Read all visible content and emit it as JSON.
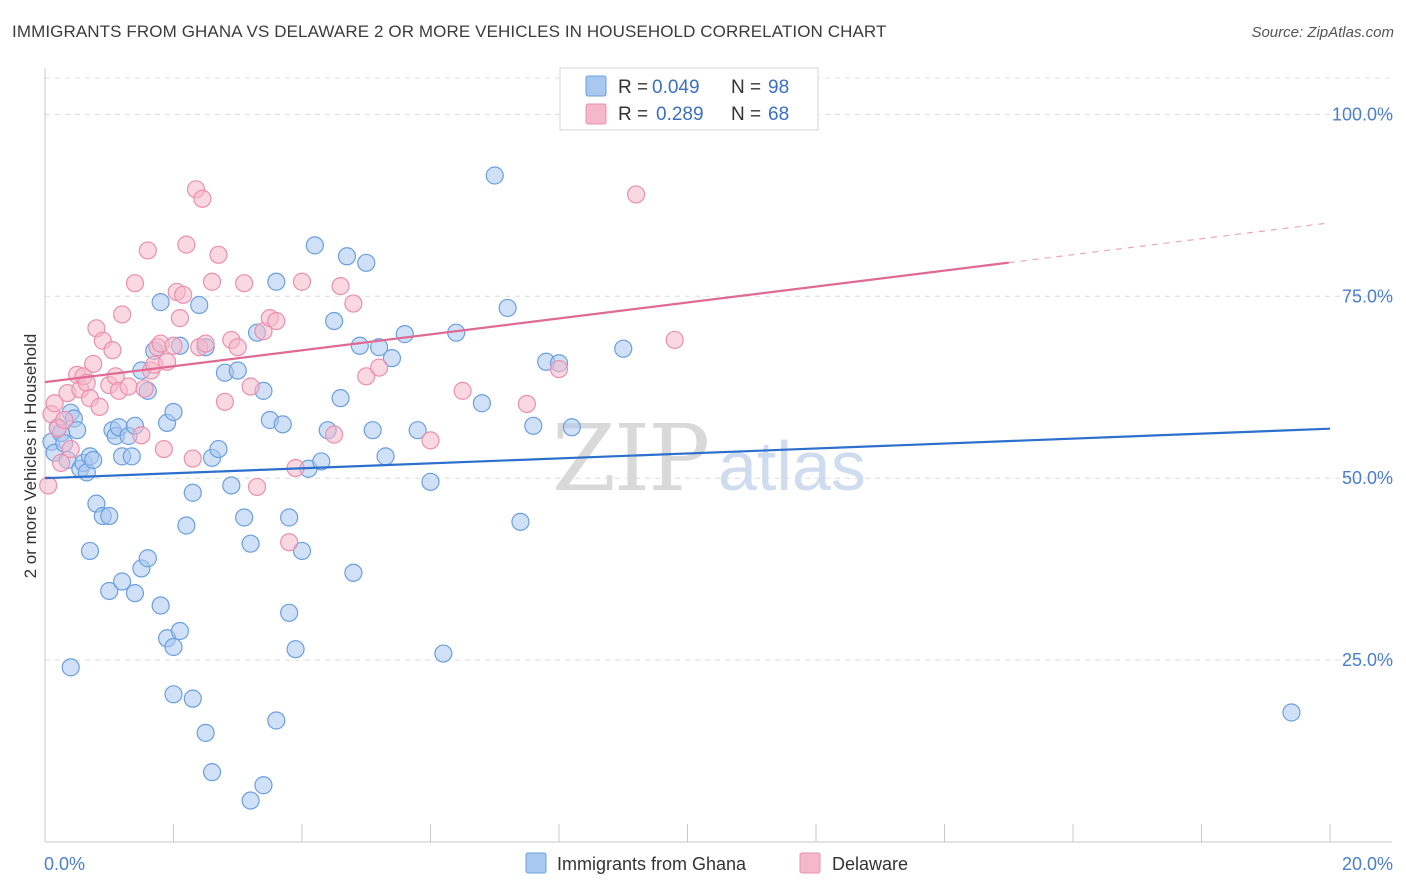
{
  "title": "IMMIGRANTS FROM GHANA VS DELAWARE 2 OR MORE VEHICLES IN HOUSEHOLD CORRELATION CHART",
  "source": "Source: ZipAtlas.com",
  "watermark": {
    "zip": "ZIP",
    "atlas": "atlas"
  },
  "colors": {
    "blue_fill": "#a9c8f0",
    "blue_stroke": "#6b9fe0",
    "blue_line": "#2d6fcc",
    "pink_fill": "#f5b8cb",
    "pink_stroke": "#ec8fae",
    "pink_line": "#e06a94",
    "grid": "#dcdcdc",
    "tick_label": "#4a7ecf"
  },
  "chart_data": {
    "type": "scatter",
    "title": "IMMIGRANTS FROM GHANA VS DELAWARE 2 OR MORE VEHICLES IN HOUSEHOLD CORRELATION CHART",
    "xlabel": "",
    "ylabel": "2 or more Vehicles in Household",
    "xlim": [
      0,
      20
    ],
    "ylim": [
      0,
      105
    ],
    "x_tick_labels": [
      {
        "value": 0,
        "label": "0.0%"
      },
      {
        "value": 20,
        "label": "20.0%"
      }
    ],
    "y_tick_labels": [
      {
        "value": 25,
        "label": "25.0%"
      },
      {
        "value": 50,
        "label": "50.0%"
      },
      {
        "value": 75,
        "label": "75.0%"
      },
      {
        "value": 100,
        "label": "100.0%"
      }
    ],
    "legend": {
      "position": "top-center",
      "entries": [
        {
          "r_label": "R =",
          "r_value": "0.049",
          "n_label": "N =",
          "n_value": "98"
        },
        {
          "r_label": "R =",
          "r_value": "0.289",
          "n_label": "N =",
          "n_value": "68"
        }
      ]
    },
    "series": [
      {
        "name": "Immigrants from Ghana",
        "color": "#a9c8f0",
        "trend": {
          "x0": 0,
          "y0": 50.0,
          "x1": 20,
          "y1": 56.8,
          "dashed_from": null
        },
        "points": [
          [
            0.1,
            55.0
          ],
          [
            0.15,
            53.5
          ],
          [
            0.2,
            57.0
          ],
          [
            0.25,
            56.2
          ],
          [
            0.3,
            54.8
          ],
          [
            0.35,
            52.5
          ],
          [
            0.4,
            59.0
          ],
          [
            0.45,
            58.2
          ],
          [
            0.5,
            56.6
          ],
          [
            0.55,
            51.3
          ],
          [
            0.6,
            52.1
          ],
          [
            0.65,
            50.8
          ],
          [
            0.7,
            53.0
          ],
          [
            0.75,
            52.5
          ],
          [
            0.8,
            46.5
          ],
          [
            0.9,
            44.8
          ],
          [
            1.0,
            44.8
          ],
          [
            1.05,
            56.6
          ],
          [
            1.1,
            55.8
          ],
          [
            1.15,
            57.0
          ],
          [
            1.2,
            53.0
          ],
          [
            1.3,
            55.8
          ],
          [
            1.35,
            53.0
          ],
          [
            1.4,
            57.2
          ],
          [
            1.5,
            64.8
          ],
          [
            1.6,
            62.0
          ],
          [
            1.7,
            67.5
          ],
          [
            1.8,
            74.2
          ],
          [
            1.9,
            57.6
          ],
          [
            2.0,
            59.1
          ],
          [
            2.1,
            68.2
          ],
          [
            2.2,
            43.5
          ],
          [
            2.3,
            48.0
          ],
          [
            2.4,
            73.8
          ],
          [
            2.5,
            68.0
          ],
          [
            2.6,
            52.8
          ],
          [
            2.7,
            54.0
          ],
          [
            2.8,
            64.5
          ],
          [
            2.9,
            49.0
          ],
          [
            3.0,
            64.8
          ],
          [
            3.1,
            44.6
          ],
          [
            3.2,
            41.0
          ],
          [
            3.3,
            70.0
          ],
          [
            3.4,
            62.0
          ],
          [
            3.5,
            58.0
          ],
          [
            3.6,
            77.0
          ],
          [
            3.7,
            57.4
          ],
          [
            3.8,
            44.6
          ],
          [
            3.9,
            26.5
          ],
          [
            4.0,
            40.0
          ],
          [
            4.1,
            51.3
          ],
          [
            4.2,
            82.0
          ],
          [
            4.3,
            52.3
          ],
          [
            4.4,
            56.6
          ],
          [
            4.5,
            71.6
          ],
          [
            4.6,
            61.0
          ],
          [
            4.7,
            80.5
          ],
          [
            4.8,
            37.0
          ],
          [
            4.9,
            68.2
          ],
          [
            5.0,
            79.6
          ],
          [
            5.1,
            56.6
          ],
          [
            5.2,
            68.0
          ],
          [
            5.3,
            53.0
          ],
          [
            5.4,
            66.5
          ],
          [
            5.6,
            69.8
          ],
          [
            5.8,
            56.6
          ],
          [
            6.0,
            49.5
          ],
          [
            6.2,
            25.9
          ],
          [
            6.4,
            70.0
          ],
          [
            6.8,
            60.3
          ],
          [
            7.0,
            91.6
          ],
          [
            7.2,
            73.4
          ],
          [
            7.4,
            44.0
          ],
          [
            7.6,
            57.2
          ],
          [
            7.8,
            66.0
          ],
          [
            8.0,
            65.8
          ],
          [
            8.2,
            57.0
          ],
          [
            9.0,
            67.8
          ],
          [
            1.0,
            34.5
          ],
          [
            1.2,
            35.8
          ],
          [
            1.4,
            34.2
          ],
          [
            1.5,
            37.6
          ],
          [
            1.6,
            39.0
          ],
          [
            1.8,
            32.5
          ],
          [
            1.9,
            28.0
          ],
          [
            2.0,
            26.8
          ],
          [
            2.1,
            29.0
          ],
          [
            2.0,
            20.3
          ],
          [
            2.3,
            19.7
          ],
          [
            2.5,
            15.0
          ],
          [
            2.6,
            9.6
          ],
          [
            3.2,
            5.7
          ],
          [
            3.4,
            7.8
          ],
          [
            3.6,
            16.7
          ],
          [
            3.8,
            31.5
          ],
          [
            0.4,
            24.0
          ],
          [
            0.7,
            40.0
          ],
          [
            19.4,
            17.8
          ]
        ]
      },
      {
        "name": "Delaware",
        "color": "#f5b8cb",
        "trend": {
          "x0": 0,
          "y0": 63.2,
          "x1": 20,
          "y1": 85.1,
          "dashed_from": 15.0
        },
        "points": [
          [
            0.05,
            49.0
          ],
          [
            0.1,
            58.8
          ],
          [
            0.15,
            60.3
          ],
          [
            0.2,
            56.8
          ],
          [
            0.25,
            52.1
          ],
          [
            0.3,
            58.0
          ],
          [
            0.35,
            61.7
          ],
          [
            0.4,
            54.0
          ],
          [
            0.5,
            64.2
          ],
          [
            0.55,
            62.2
          ],
          [
            0.6,
            64.0
          ],
          [
            0.65,
            63.1
          ],
          [
            0.7,
            61.0
          ],
          [
            0.75,
            65.7
          ],
          [
            0.8,
            70.6
          ],
          [
            0.85,
            59.8
          ],
          [
            0.9,
            68.9
          ],
          [
            1.0,
            62.8
          ],
          [
            1.05,
            67.6
          ],
          [
            1.1,
            64.0
          ],
          [
            1.15,
            62.0
          ],
          [
            1.2,
            72.5
          ],
          [
            1.3,
            62.6
          ],
          [
            1.4,
            76.8
          ],
          [
            1.5,
            55.9
          ],
          [
            1.55,
            62.3
          ],
          [
            1.6,
            81.3
          ],
          [
            1.65,
            64.8
          ],
          [
            1.7,
            65.6
          ],
          [
            1.75,
            68.0
          ],
          [
            1.8,
            68.5
          ],
          [
            1.85,
            54.0
          ],
          [
            1.9,
            66.0
          ],
          [
            2.0,
            68.2
          ],
          [
            2.05,
            75.6
          ],
          [
            2.1,
            72.0
          ],
          [
            2.15,
            75.2
          ],
          [
            2.2,
            82.1
          ],
          [
            2.3,
            52.7
          ],
          [
            2.35,
            89.7
          ],
          [
            2.4,
            68.0
          ],
          [
            2.45,
            88.4
          ],
          [
            2.5,
            68.5
          ],
          [
            2.6,
            77.0
          ],
          [
            2.7,
            80.7
          ],
          [
            2.8,
            60.5
          ],
          [
            2.9,
            69.0
          ],
          [
            3.0,
            68.0
          ],
          [
            3.1,
            76.8
          ],
          [
            3.2,
            62.6
          ],
          [
            3.3,
            48.8
          ],
          [
            3.4,
            70.2
          ],
          [
            3.5,
            72.0
          ],
          [
            3.6,
            71.6
          ],
          [
            3.8,
            41.2
          ],
          [
            3.9,
            51.4
          ],
          [
            4.0,
            77.0
          ],
          [
            4.5,
            56.0
          ],
          [
            4.6,
            76.4
          ],
          [
            4.8,
            74.0
          ],
          [
            5.0,
            64.0
          ],
          [
            5.2,
            65.2
          ],
          [
            6.0,
            55.2
          ],
          [
            6.5,
            62.0
          ],
          [
            7.5,
            60.2
          ],
          [
            8.0,
            65.0
          ],
          [
            9.2,
            89.0
          ],
          [
            9.8,
            69.0
          ]
        ]
      }
    ]
  },
  "bottom_legend": [
    {
      "label": "Immigrants from Ghana"
    },
    {
      "label": "Delaware"
    }
  ]
}
